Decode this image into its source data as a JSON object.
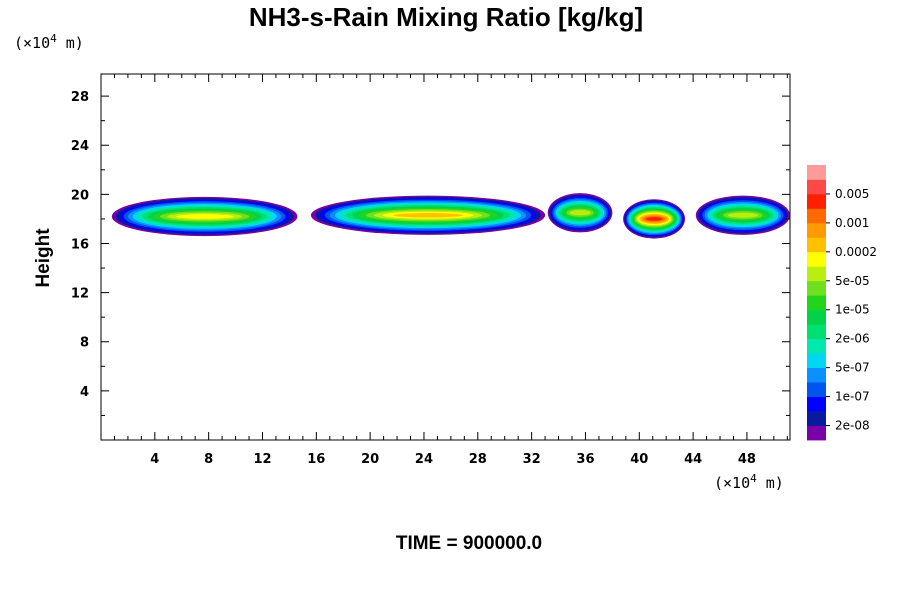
{
  "chart_data": {
    "type": "heatmap",
    "title": "NH3-s-Rain Mixing Ratio [kg/kg]",
    "ylabel": "Height",
    "xlabel": "",
    "x_unit": {
      "prefix": "(×10",
      "exp": "4",
      "suffix": " m)"
    },
    "y_unit": {
      "prefix": "(×10",
      "exp": "4",
      "suffix": " m)"
    },
    "xlim": [
      0,
      51.2
    ],
    "ylim": [
      0,
      29.8
    ],
    "x_ticks": [
      4,
      8,
      12,
      16,
      20,
      24,
      28,
      32,
      36,
      40,
      44,
      48
    ],
    "y_ticks": [
      4,
      8,
      12,
      16,
      20,
      24,
      28
    ],
    "colorbar": {
      "colors": [
        "#7a00a8",
        "#0a1aa0",
        "#0000ff",
        "#0055ee",
        "#0a90ff",
        "#00d7f2",
        "#00e8b0",
        "#00e070",
        "#00d24a",
        "#23d41d",
        "#6fe01e",
        "#b8ee10",
        "#ffff00",
        "#ffc000",
        "#ff9a00",
        "#ff6a00",
        "#ff2000",
        "#ff4848",
        "#ff9a9a"
      ],
      "labels": [
        "2e-08",
        "1e-07",
        "5e-07",
        "2e-06",
        "1e-05",
        "5e-05",
        "0.0002",
        "0.001",
        "0.005"
      ]
    },
    "cloud_layer": {
      "height_range": [
        16.6,
        19.8
      ],
      "segments": [
        {
          "x_range": [
            0.8,
            14.6
          ],
          "core_height": 18.2,
          "max_level": 12
        },
        {
          "x_range": [
            15.6,
            33.0
          ],
          "core_height": 18.3,
          "max_level": 13
        },
        {
          "x_range": [
            33.2,
            38.0
          ],
          "core_height": 18.5,
          "max_level": 11
        },
        {
          "x_range": [
            38.8,
            43.4
          ],
          "core_height": 18.0,
          "max_level": 16
        },
        {
          "x_range": [
            44.2,
            51.2
          ],
          "core_height": 18.3,
          "max_level": 11
        }
      ]
    }
  },
  "time_label": "TIME = 900000.0"
}
